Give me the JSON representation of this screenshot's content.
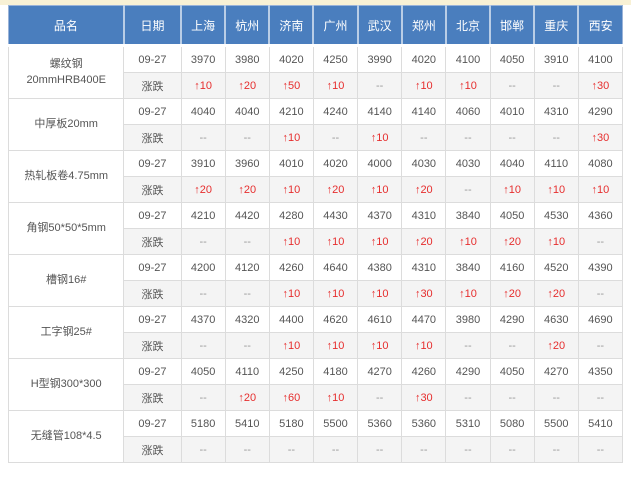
{
  "colors": {
    "header_bg": "#4a7ebe",
    "header_text": "#ffffff",
    "change_row_bg": "#f4f4f4",
    "price_row_bg": "#ffffff",
    "up_red": "#e62e2e",
    "dash_gray": "#999999",
    "border": "#dcdcdc",
    "top_strip": "#f8f1d5"
  },
  "table": {
    "columns": [
      "品名",
      "日期",
      "上海",
      "杭州",
      "济南",
      "广州",
      "武汉",
      "郑州",
      "北京",
      "邯郸",
      "重庆",
      "西安"
    ],
    "date_value": "09-27",
    "change_label": "涨跌",
    "products": [
      {
        "name_lines": [
          "螺纹钢",
          "20mmHRB400E"
        ],
        "prices": [
          "3970",
          "3980",
          "4020",
          "4250",
          "3990",
          "4020",
          "4100",
          "4050",
          "3910",
          "4100"
        ],
        "changes": [
          "↑10",
          "↑20",
          "↑50",
          "↑10",
          "--",
          "↑10",
          "↑10",
          "--",
          "--",
          "↑30"
        ]
      },
      {
        "name_lines": [
          "中厚板20mm"
        ],
        "prices": [
          "4040",
          "4040",
          "4210",
          "4240",
          "4140",
          "4140",
          "4060",
          "4010",
          "4310",
          "4290"
        ],
        "changes": [
          "--",
          "--",
          "↑10",
          "--",
          "↑10",
          "--",
          "--",
          "--",
          "--",
          "↑30"
        ]
      },
      {
        "name_lines": [
          "热轧板卷4.75mm"
        ],
        "prices": [
          "3910",
          "3960",
          "4010",
          "4020",
          "4000",
          "4030",
          "4030",
          "4040",
          "4110",
          "4080"
        ],
        "changes": [
          "↑20",
          "↑20",
          "↑10",
          "↑20",
          "↑10",
          "↑20",
          "--",
          "↑10",
          "↑10",
          "↑10"
        ]
      },
      {
        "name_lines": [
          "角钢50*50*5mm"
        ],
        "prices": [
          "4210",
          "4420",
          "4280",
          "4430",
          "4370",
          "4310",
          "3840",
          "4050",
          "4530",
          "4360"
        ],
        "changes": [
          "--",
          "--",
          "↑10",
          "↑10",
          "↑10",
          "↑20",
          "↑10",
          "↑20",
          "↑10",
          "--"
        ]
      },
      {
        "name_lines": [
          "槽钢16#"
        ],
        "prices": [
          "4200",
          "4120",
          "4260",
          "4640",
          "4380",
          "4310",
          "3840",
          "4160",
          "4520",
          "4390"
        ],
        "changes": [
          "--",
          "--",
          "↑10",
          "↑10",
          "↑10",
          "↑30",
          "↑10",
          "↑20",
          "↑20",
          "--"
        ]
      },
      {
        "name_lines": [
          "工字钢25#"
        ],
        "prices": [
          "4370",
          "4320",
          "4400",
          "4620",
          "4610",
          "4470",
          "3980",
          "4290",
          "4630",
          "4690"
        ],
        "changes": [
          "--",
          "--",
          "↑10",
          "↑10",
          "↑10",
          "↑10",
          "--",
          "--",
          "↑20",
          "--"
        ]
      },
      {
        "name_lines": [
          "H型钢300*300"
        ],
        "prices": [
          "4050",
          "4110",
          "4250",
          "4180",
          "4270",
          "4260",
          "4290",
          "4050",
          "4270",
          "4350"
        ],
        "changes": [
          "--",
          "↑20",
          "↑60",
          "↑10",
          "--",
          "↑30",
          "--",
          "--",
          "--",
          "--"
        ]
      },
      {
        "name_lines": [
          "无缝管108*4.5"
        ],
        "prices": [
          "5180",
          "5410",
          "5180",
          "5500",
          "5360",
          "5360",
          "5310",
          "5080",
          "5500",
          "5410"
        ],
        "changes": [
          "--",
          "--",
          "--",
          "--",
          "--",
          "--",
          "--",
          "--",
          "--",
          "--"
        ]
      }
    ]
  }
}
